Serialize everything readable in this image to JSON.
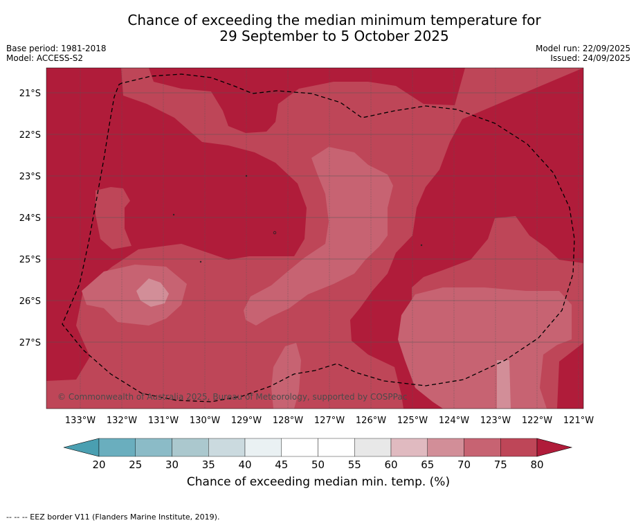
{
  "title": {
    "line1": "Chance of exceeding the median minimum temperature for",
    "line2": "29 September to 5 October 2025"
  },
  "meta": {
    "base_period": "Base period: 1981-2018",
    "model": "Model: ACCESS-S2",
    "model_run": "Model run: 22/09/2025",
    "issued": "Issued: 24/09/2025"
  },
  "map": {
    "lat_labels": [
      "21°S",
      "22°S",
      "23°S",
      "24°S",
      "25°S",
      "26°S",
      "27°S"
    ],
    "lon_labels": [
      "133°W",
      "132°W",
      "131°W",
      "130°W",
      "129°W",
      "128°W",
      "127°W",
      "126°W",
      "125°W",
      "124°W",
      "123°W",
      "122°W",
      "121°W"
    ],
    "copyright": "© Commonwealth of Australia 2025, Bureau of Meteorology, supported by COSPPac"
  },
  "colorbar": {
    "ticks": [
      "20",
      "25",
      "30",
      "35",
      "40",
      "45",
      "50",
      "55",
      "60",
      "65",
      "70",
      "75",
      "80"
    ],
    "label": "Chance of exceeding median min. temp. (%)",
    "colors": [
      "#4a9fb1",
      "#6aaebe",
      "#8bbbc7",
      "#abc8ce",
      "#cbdadf",
      "#eaf1f3",
      "#ffffff",
      "#ffffff",
      "#e8e8e8",
      "#e0bac0",
      "#d28e98",
      "#c76372",
      "#be4658",
      "#b01c3a"
    ]
  },
  "legend": {
    "eez": "--  --  -- EEZ border V11 (Flanders Marine Institute, 2019)."
  }
}
